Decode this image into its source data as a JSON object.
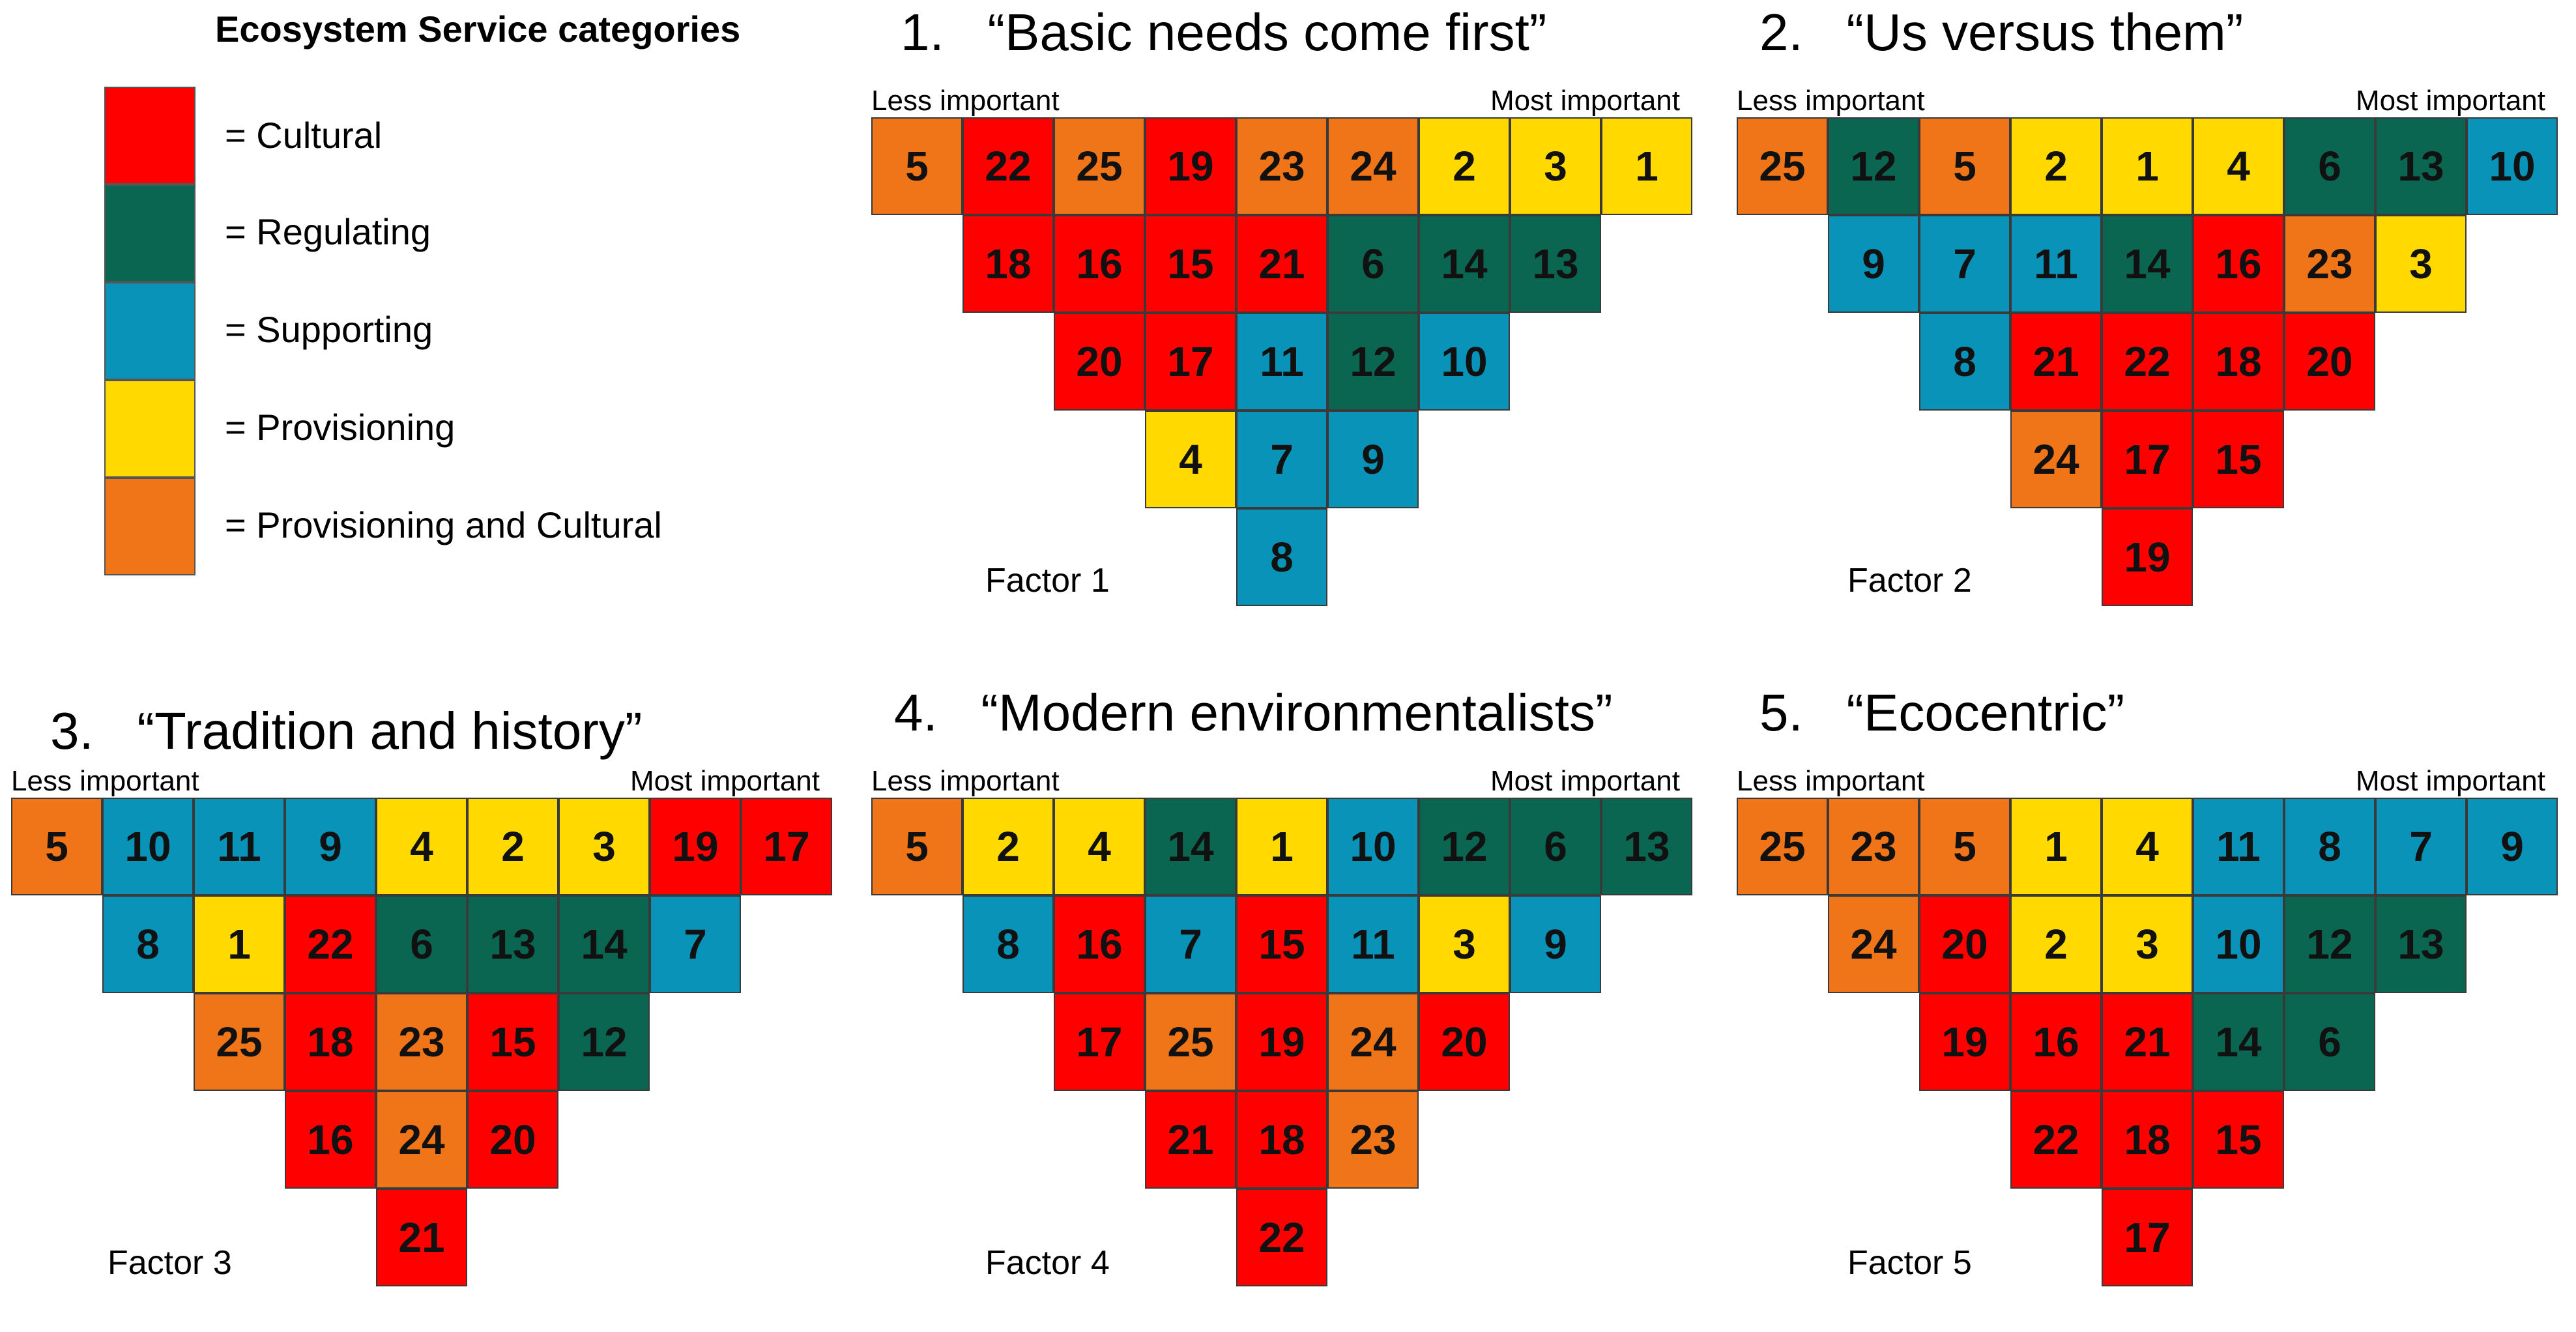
{
  "colors": {
    "cultural": "#ff0000",
    "regulating": "#0a6650",
    "supporting": "#0a93b8",
    "provisioning": "#ffd900",
    "prov_cultural": "#f07518"
  },
  "legend": {
    "title": "Ecosystem Service categories",
    "items": [
      {
        "key": "cultural",
        "label": "= Cultural"
      },
      {
        "key": "regulating",
        "label": "= Regulating"
      },
      {
        "key": "supporting",
        "label": "= Supporting"
      },
      {
        "key": "provisioning",
        "label": "= Provisioning"
      },
      {
        "key": "prov_cultural",
        "label": "= Provisioning and Cultural"
      }
    ]
  },
  "axis": {
    "left": "Less important",
    "right": "Most important"
  },
  "factors": [
    {
      "title": "1.   “Basic needs come first”",
      "name": "Factor 1",
      "rows": [
        [
          {
            "v": "5",
            "c": "prov_cultural"
          },
          {
            "v": "22",
            "c": "cultural"
          },
          {
            "v": "25",
            "c": "prov_cultural"
          },
          {
            "v": "19",
            "c": "cultural"
          },
          {
            "v": "23",
            "c": "prov_cultural"
          },
          {
            "v": "24",
            "c": "prov_cultural"
          },
          {
            "v": "2",
            "c": "provisioning"
          },
          {
            "v": "3",
            "c": "provisioning"
          },
          {
            "v": "1",
            "c": "provisioning"
          }
        ],
        [
          {
            "v": "18",
            "c": "cultural"
          },
          {
            "v": "16",
            "c": "cultural"
          },
          {
            "v": "15",
            "c": "cultural"
          },
          {
            "v": "21",
            "c": "cultural"
          },
          {
            "v": "6",
            "c": "regulating"
          },
          {
            "v": "14",
            "c": "regulating"
          },
          {
            "v": "13",
            "c": "regulating"
          }
        ],
        [
          {
            "v": "20",
            "c": "cultural"
          },
          {
            "v": "17",
            "c": "cultural"
          },
          {
            "v": "11",
            "c": "supporting"
          },
          {
            "v": "12",
            "c": "regulating"
          },
          {
            "v": "10",
            "c": "supporting"
          }
        ],
        [
          {
            "v": "4",
            "c": "provisioning"
          },
          {
            "v": "7",
            "c": "supporting"
          },
          {
            "v": "9",
            "c": "supporting"
          }
        ],
        [
          {
            "v": "8",
            "c": "supporting"
          }
        ]
      ]
    },
    {
      "title": "2.   “Us versus them”",
      "name": "Factor 2",
      "rows": [
        [
          {
            "v": "25",
            "c": "prov_cultural"
          },
          {
            "v": "12",
            "c": "regulating"
          },
          {
            "v": "5",
            "c": "prov_cultural"
          },
          {
            "v": "2",
            "c": "provisioning"
          },
          {
            "v": "1",
            "c": "provisioning"
          },
          {
            "v": "4",
            "c": "provisioning"
          },
          {
            "v": "6",
            "c": "regulating"
          },
          {
            "v": "13",
            "c": "regulating"
          },
          {
            "v": "10",
            "c": "supporting"
          }
        ],
        [
          {
            "v": "9",
            "c": "supporting"
          },
          {
            "v": "7",
            "c": "supporting"
          },
          {
            "v": "11",
            "c": "supporting"
          },
          {
            "v": "14",
            "c": "regulating"
          },
          {
            "v": "16",
            "c": "cultural"
          },
          {
            "v": "23",
            "c": "prov_cultural"
          },
          {
            "v": "3",
            "c": "provisioning"
          }
        ],
        [
          {
            "v": "8",
            "c": "supporting"
          },
          {
            "v": "21",
            "c": "cultural"
          },
          {
            "v": "22",
            "c": "cultural"
          },
          {
            "v": "18",
            "c": "cultural"
          },
          {
            "v": "20",
            "c": "cultural"
          }
        ],
        [
          {
            "v": "24",
            "c": "prov_cultural"
          },
          {
            "v": "17",
            "c": "cultural"
          },
          {
            "v": "15",
            "c": "cultural"
          }
        ],
        [
          {
            "v": "19",
            "c": "cultural"
          }
        ]
      ]
    },
    {
      "title": "3.   “Tradition and history”",
      "name": "Factor 3",
      "rows": [
        [
          {
            "v": "5",
            "c": "prov_cultural"
          },
          {
            "v": "10",
            "c": "supporting"
          },
          {
            "v": "11",
            "c": "supporting"
          },
          {
            "v": "9",
            "c": "supporting"
          },
          {
            "v": "4",
            "c": "provisioning"
          },
          {
            "v": "2",
            "c": "provisioning"
          },
          {
            "v": "3",
            "c": "provisioning"
          },
          {
            "v": "19",
            "c": "cultural"
          },
          {
            "v": "17",
            "c": "cultural"
          }
        ],
        [
          {
            "v": "8",
            "c": "supporting"
          },
          {
            "v": "1",
            "c": "provisioning"
          },
          {
            "v": "22",
            "c": "cultural"
          },
          {
            "v": "6",
            "c": "regulating"
          },
          {
            "v": "13",
            "c": "regulating"
          },
          {
            "v": "14",
            "c": "regulating"
          },
          {
            "v": "7",
            "c": "supporting"
          }
        ],
        [
          {
            "v": "25",
            "c": "prov_cultural"
          },
          {
            "v": "18",
            "c": "cultural"
          },
          {
            "v": "23",
            "c": "prov_cultural"
          },
          {
            "v": "15",
            "c": "cultural"
          },
          {
            "v": "12",
            "c": "regulating"
          }
        ],
        [
          {
            "v": "16",
            "c": "cultural"
          },
          {
            "v": "24",
            "c": "prov_cultural"
          },
          {
            "v": "20",
            "c": "cultural"
          }
        ],
        [
          {
            "v": "21",
            "c": "cultural"
          }
        ]
      ]
    },
    {
      "title": "4.   “Modern environmentalists”",
      "name": "Factor 4",
      "rows": [
        [
          {
            "v": "5",
            "c": "prov_cultural"
          },
          {
            "v": "2",
            "c": "provisioning"
          },
          {
            "v": "4",
            "c": "provisioning"
          },
          {
            "v": "14",
            "c": "regulating"
          },
          {
            "v": "1",
            "c": "provisioning"
          },
          {
            "v": "10",
            "c": "supporting"
          },
          {
            "v": "12",
            "c": "regulating"
          },
          {
            "v": "6",
            "c": "regulating"
          },
          {
            "v": "13",
            "c": "regulating"
          }
        ],
        [
          {
            "v": "8",
            "c": "supporting"
          },
          {
            "v": "16",
            "c": "cultural"
          },
          {
            "v": "7",
            "c": "supporting"
          },
          {
            "v": "15",
            "c": "cultural"
          },
          {
            "v": "11",
            "c": "supporting"
          },
          {
            "v": "3",
            "c": "provisioning"
          },
          {
            "v": "9",
            "c": "supporting"
          }
        ],
        [
          {
            "v": "17",
            "c": "cultural"
          },
          {
            "v": "25",
            "c": "prov_cultural"
          },
          {
            "v": "19",
            "c": "cultural"
          },
          {
            "v": "24",
            "c": "prov_cultural"
          },
          {
            "v": "20",
            "c": "cultural"
          }
        ],
        [
          {
            "v": "21",
            "c": "cultural"
          },
          {
            "v": "18",
            "c": "cultural"
          },
          {
            "v": "23",
            "c": "prov_cultural"
          }
        ],
        [
          {
            "v": "22",
            "c": "cultural"
          }
        ]
      ]
    },
    {
      "title": "5.   “Ecocentric”",
      "name": "Factor 5",
      "rows": [
        [
          {
            "v": "25",
            "c": "prov_cultural"
          },
          {
            "v": "23",
            "c": "prov_cultural"
          },
          {
            "v": "5",
            "c": "prov_cultural"
          },
          {
            "v": "1",
            "c": "provisioning"
          },
          {
            "v": "4",
            "c": "provisioning"
          },
          {
            "v": "11",
            "c": "supporting"
          },
          {
            "v": "8",
            "c": "supporting"
          },
          {
            "v": "7",
            "c": "supporting"
          },
          {
            "v": "9",
            "c": "supporting"
          }
        ],
        [
          {
            "v": "24",
            "c": "prov_cultural"
          },
          {
            "v": "20",
            "c": "cultural"
          },
          {
            "v": "2",
            "c": "provisioning"
          },
          {
            "v": "3",
            "c": "provisioning"
          },
          {
            "v": "10",
            "c": "supporting"
          },
          {
            "v": "12",
            "c": "regulating"
          },
          {
            "v": "13",
            "c": "regulating"
          }
        ],
        [
          {
            "v": "19",
            "c": "cultural"
          },
          {
            "v": "16",
            "c": "cultural"
          },
          {
            "v": "21",
            "c": "cultural"
          },
          {
            "v": "14",
            "c": "regulating"
          },
          {
            "v": "6",
            "c": "regulating"
          }
        ],
        [
          {
            "v": "22",
            "c": "cultural"
          },
          {
            "v": "18",
            "c": "cultural"
          },
          {
            "v": "15",
            "c": "cultural"
          }
        ],
        [
          {
            "v": "17",
            "c": "cultural"
          }
        ]
      ]
    }
  ]
}
